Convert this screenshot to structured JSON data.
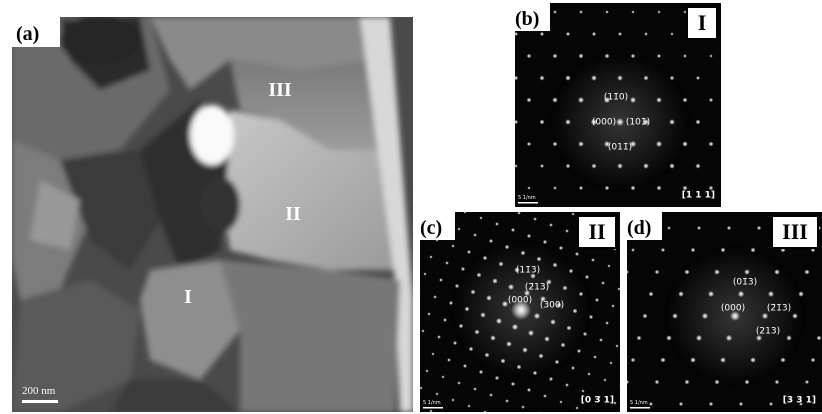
{
  "panels": [
    {
      "label": "(a)",
      "regions": [
        "III",
        "II",
        "I"
      ],
      "scale_bar": "200 nm"
    },
    {
      "label": "(b)",
      "phase": "I",
      "zone_axis": "[1 1 1]",
      "scale_bar": "5 1/nm",
      "spots": [
        "(11̄0)",
        "(000)",
        "(101̄)",
        "(011̄)"
      ]
    },
    {
      "label": "(c)",
      "phase": "II",
      "zone_axis": "[0 3 1]",
      "scale_bar": "5 1/nm",
      "spots": [
        "(11̄3)",
        "(2̄13)",
        "(000)",
        "(300)"
      ]
    },
    {
      "label": "(d)",
      "phase": "III",
      "zone_axis": "[3 3 1]",
      "scale_bar": "5 1/nm",
      "spots": [
        "(01̄3)",
        "(000)",
        "(2̄1̄3)",
        "(213)"
      ]
    }
  ]
}
